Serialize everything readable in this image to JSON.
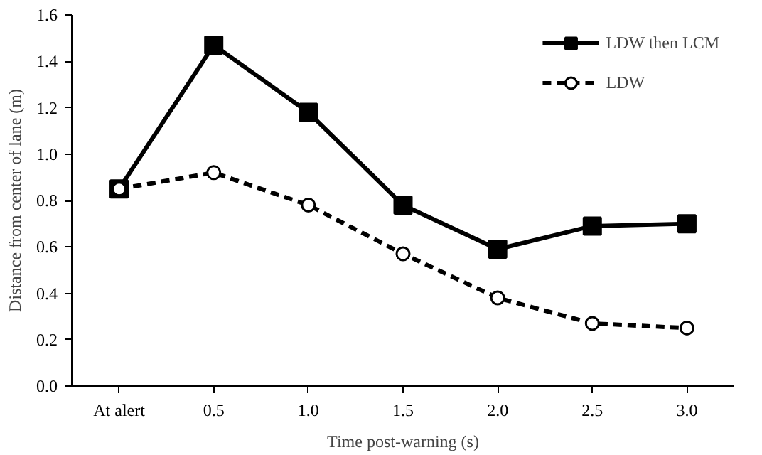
{
  "chart_data": {
    "type": "line",
    "xlabel": "Time post-warning (s)",
    "ylabel": "Distance from center of lane (m)",
    "categories": [
      "At alert",
      "0.5",
      "1.0",
      "1.5",
      "2.0",
      "2.5",
      "3.0"
    ],
    "series": [
      {
        "name": "LDW then LCM",
        "color": "#000000",
        "values": [
          0.85,
          1.47,
          1.18,
          0.78,
          0.59,
          0.69,
          0.7
        ],
        "marker": "square",
        "line_style": "solid"
      },
      {
        "name": "LDW",
        "color": "#000000",
        "values": [
          0.85,
          0.92,
          0.78,
          0.57,
          0.38,
          0.27,
          0.25
        ],
        "marker": "circle",
        "line_style": "dashed"
      }
    ],
    "ylim": [
      0,
      1.6
    ],
    "yticks": [
      {
        "value": 0,
        "label": "0.0"
      },
      0.2,
      0.4,
      0.6,
      0.8,
      {
        "value": 1,
        "label": "1.0"
      },
      1.2,
      1.4,
      1.6
    ],
    "grid": false,
    "legend": "top right"
  }
}
